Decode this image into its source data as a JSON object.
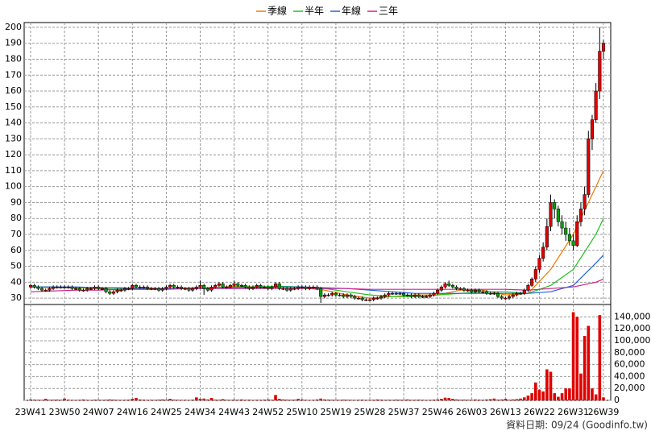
{
  "chart_data": {
    "type": "candlestick",
    "legend": "top",
    "footer": "資料日期: 09/24 (Goodinfo.tw)",
    "up_color": "#e00000",
    "down_color": "#00a000",
    "categories": [
      "23W41",
      null,
      null,
      null,
      null,
      null,
      null,
      null,
      null,
      "23W50",
      null,
      null,
      null,
      null,
      null,
      null,
      null,
      null,
      "24W07",
      null,
      null,
      null,
      null,
      null,
      null,
      null,
      null,
      "24W16",
      null,
      null,
      null,
      null,
      null,
      null,
      null,
      null,
      "24W25",
      null,
      null,
      null,
      null,
      null,
      null,
      null,
      null,
      "24W34",
      null,
      null,
      null,
      null,
      null,
      null,
      null,
      null,
      "24W43",
      null,
      null,
      null,
      null,
      null,
      null,
      null,
      null,
      "24W52",
      null,
      null,
      null,
      null,
      null,
      null,
      null,
      null,
      "25W10",
      null,
      null,
      null,
      null,
      null,
      null,
      null,
      null,
      "25W19",
      null,
      null,
      null,
      null,
      null,
      null,
      null,
      null,
      "25W28",
      null,
      null,
      null,
      null,
      null,
      null,
      null,
      null,
      "25W37",
      null,
      null,
      null,
      null,
      null,
      null,
      null,
      null,
      "25W46",
      null,
      null,
      null,
      null,
      null,
      null,
      null,
      null,
      "26W03",
      null,
      null,
      null,
      null,
      null,
      null,
      null,
      null,
      "26W13",
      null,
      null,
      null,
      null,
      null,
      null,
      null,
      null,
      "26W22",
      null,
      null,
      null,
      null,
      null,
      null,
      null,
      null,
      "26W31",
      null,
      null,
      null,
      null,
      null,
      null,
      null,
      "26W39"
    ],
    "open": [
      37,
      38,
      37,
      36,
      35,
      35,
      36,
      37,
      37,
      37,
      37,
      37,
      36,
      36,
      35,
      35,
      36,
      36,
      37,
      36,
      36,
      34,
      33,
      34,
      35,
      35,
      36,
      36,
      38,
      37,
      37,
      37,
      36,
      36,
      36,
      35,
      36,
      37,
      38,
      37,
      37,
      36,
      36,
      35,
      36,
      37,
      38,
      36,
      35,
      37,
      38,
      39,
      37,
      37,
      38,
      39,
      38,
      38,
      37,
      36,
      37,
      38,
      37,
      37,
      36,
      37,
      39,
      36,
      36,
      35,
      36,
      36,
      37,
      37,
      36,
      37,
      37,
      36,
      31,
      32,
      32,
      33,
      32,
      32,
      31,
      32,
      31,
      30,
      30,
      29,
      29,
      29,
      30,
      30,
      31,
      32,
      33,
      33,
      33,
      33,
      32,
      32,
      31,
      32,
      31,
      31,
      31,
      32,
      33,
      35,
      37,
      39,
      38,
      37,
      36,
      36,
      35,
      35,
      34,
      35,
      34,
      34,
      33,
      33,
      33,
      31,
      30,
      30,
      31,
      32,
      33,
      33,
      35,
      38,
      42,
      48,
      55,
      62,
      75,
      90,
      86,
      78,
      74,
      70,
      66,
      63,
      78,
      86,
      95,
      130,
      142,
      160,
      185
    ],
    "high": [
      39,
      39,
      38,
      37,
      36,
      37,
      38,
      38,
      38,
      38,
      38,
      38,
      37,
      37,
      36,
      37,
      37,
      38,
      38,
      37,
      37,
      35,
      35,
      36,
      36,
      37,
      37,
      39,
      39,
      38,
      38,
      38,
      37,
      37,
      37,
      37,
      38,
      39,
      39,
      38,
      38,
      37,
      37,
      37,
      38,
      41,
      39,
      37,
      38,
      39,
      40,
      40,
      38,
      39,
      41,
      40,
      39,
      39,
      38,
      38,
      39,
      39,
      38,
      38,
      38,
      40,
      40,
      37,
      37,
      37,
      37,
      38,
      38,
      38,
      38,
      38,
      38,
      37,
      33,
      33,
      34,
      34,
      33,
      33,
      33,
      33,
      32,
      31,
      31,
      30,
      30,
      31,
      31,
      32,
      33,
      34,
      34,
      34,
      34,
      34,
      33,
      33,
      33,
      33,
      32,
      32,
      33,
      34,
      36,
      38,
      40,
      41,
      39,
      38,
      37,
      37,
      36,
      36,
      36,
      36,
      35,
      35,
      34,
      34,
      34,
      32,
      31,
      32,
      33,
      34,
      34,
      36,
      39,
      43,
      50,
      57,
      65,
      80,
      95,
      92,
      88,
      82,
      78,
      74,
      70,
      82,
      90,
      100,
      135,
      145,
      165,
      200,
      192
    ],
    "low": [
      36,
      36,
      35,
      34,
      34,
      34,
      35,
      36,
      36,
      36,
      36,
      35,
      35,
      34,
      34,
      34,
      35,
      35,
      35,
      35,
      33,
      32,
      32,
      33,
      34,
      34,
      35,
      35,
      36,
      36,
      36,
      35,
      35,
      35,
      34,
      34,
      35,
      36,
      36,
      36,
      35,
      35,
      34,
      34,
      35,
      36,
      32,
      34,
      34,
      36,
      37,
      36,
      36,
      36,
      37,
      37,
      37,
      36,
      35,
      35,
      36,
      36,
      36,
      35,
      35,
      36,
      35,
      35,
      34,
      34,
      35,
      35,
      36,
      35,
      35,
      36,
      35,
      27,
      30,
      31,
      31,
      31,
      31,
      30,
      30,
      30,
      29,
      29,
      28,
      28,
      28,
      28,
      29,
      29,
      30,
      31,
      32,
      32,
      32,
      31,
      31,
      30,
      30,
      30,
      30,
      30,
      30,
      31,
      32,
      34,
      36,
      37,
      36,
      35,
      35,
      34,
      34,
      33,
      33,
      33,
      33,
      32,
      32,
      32,
      30,
      29,
      29,
      29,
      30,
      31,
      32,
      32,
      34,
      37,
      40,
      46,
      53,
      60,
      72,
      80,
      75,
      70,
      66,
      63,
      60,
      62,
      75,
      82,
      93,
      123,
      140,
      155,
      180
    ],
    "close": [
      38,
      37,
      36,
      35,
      35,
      36,
      37,
      37,
      37,
      37,
      37,
      36,
      36,
      35,
      35,
      36,
      36,
      37,
      36,
      36,
      34,
      33,
      34,
      35,
      35,
      36,
      36,
      38,
      37,
      37,
      37,
      36,
      36,
      36,
      35,
      36,
      37,
      38,
      37,
      37,
      36,
      36,
      35,
      36,
      37,
      38,
      36,
      35,
      37,
      38,
      39,
      37,
      37,
      38,
      39,
      38,
      38,
      37,
      36,
      37,
      38,
      37,
      37,
      36,
      37,
      39,
      36,
      36,
      35,
      36,
      36,
      37,
      37,
      36,
      37,
      37,
      36,
      31,
      32,
      32,
      33,
      32,
      32,
      31,
      32,
      31,
      30,
      30,
      29,
      29,
      29,
      30,
      30,
      31,
      32,
      33,
      33,
      33,
      33,
      32,
      32,
      31,
      32,
      31,
      31,
      31,
      32,
      33,
      35,
      37,
      39,
      38,
      37,
      36,
      36,
      35,
      35,
      34,
      35,
      34,
      34,
      33,
      33,
      33,
      31,
      30,
      30,
      31,
      32,
      33,
      33,
      35,
      38,
      42,
      48,
      55,
      62,
      75,
      90,
      86,
      78,
      74,
      70,
      66,
      63,
      78,
      86,
      95,
      130,
      142,
      160,
      185,
      190
    ],
    "ylim": [
      26,
      203
    ],
    "yticks": [
      30,
      40,
      50,
      60,
      70,
      80,
      90,
      100,
      110,
      120,
      130,
      140,
      150,
      160,
      170,
      180,
      190,
      200
    ],
    "lines": [
      {
        "name": "季線",
        "color": "#f07800",
        "x": [
          0,
          6,
          12,
          18,
          24,
          30,
          36,
          42,
          48,
          54,
          60,
          66,
          72,
          78,
          84,
          90,
          96,
          102,
          108,
          114,
          120,
          126,
          132,
          138,
          144,
          150,
          152
        ],
        "values": [
          37,
          36.5,
          36.5,
          36,
          35,
          36.5,
          36,
          36.5,
          36.5,
          37.5,
          37,
          37,
          36.5,
          35,
          32,
          30,
          31,
          32,
          32,
          35,
          35,
          32,
          33,
          48,
          70,
          100,
          110
        ]
      },
      {
        "name": "半年",
        "color": "#20c020",
        "x": [
          0,
          6,
          12,
          18,
          24,
          30,
          36,
          42,
          48,
          54,
          60,
          66,
          72,
          78,
          84,
          90,
          96,
          102,
          108,
          114,
          120,
          126,
          132,
          138,
          144,
          150,
          152
        ],
        "values": [
          37,
          37,
          36.5,
          36.5,
          36,
          35.5,
          36,
          36,
          36.5,
          37,
          37,
          37.5,
          37,
          36,
          34,
          32,
          31,
          31,
          32,
          33,
          34,
          34,
          33,
          38,
          48,
          70,
          80
        ]
      },
      {
        "name": "年線",
        "color": "#2060e0",
        "x": [
          0,
          6,
          12,
          18,
          24,
          30,
          36,
          42,
          48,
          54,
          60,
          66,
          72,
          78,
          84,
          90,
          96,
          102,
          108,
          114,
          120,
          126,
          132,
          138,
          144,
          150,
          152
        ],
        "values": [
          37,
          37,
          37,
          36.5,
          36.5,
          36,
          36,
          36,
          36,
          36.5,
          36.5,
          37,
          37,
          36.5,
          36,
          35,
          34,
          33,
          33,
          33,
          33,
          33,
          33,
          34,
          38,
          52,
          57
        ]
      },
      {
        "name": "三年",
        "color": "#d02090",
        "x": [
          0,
          6,
          12,
          18,
          24,
          30,
          36,
          42,
          48,
          54,
          60,
          66,
          72,
          78,
          84,
          90,
          96,
          102,
          108,
          114,
          120,
          126,
          132,
          138,
          144,
          150,
          152
        ],
        "values": [
          34,
          34.5,
          35,
          35,
          35.5,
          35.5,
          35.5,
          36,
          36,
          36,
          36,
          36,
          36,
          36,
          36,
          35.5,
          35.5,
          35.5,
          35.5,
          35.5,
          35.5,
          35.5,
          35,
          36,
          37,
          40,
          42
        ]
      }
    ],
    "volume": {
      "color": "#e00000",
      "ylim": [
        0,
        150000
      ],
      "yticks": [
        0,
        {
          "value": 20000,
          "label": "20,000"
        },
        {
          "value": 40000,
          "label": "40,000"
        },
        {
          "value": 60000,
          "label": "60,000"
        },
        {
          "value": 80000,
          "label": "80,000"
        },
        {
          "value": 100000,
          "label": "100,000"
        },
        {
          "value": 120000,
          "label": "120,000"
        },
        {
          "value": 140000,
          "label": "140,000"
        }
      ],
      "values": [
        1500,
        1200,
        1000,
        800,
        2500,
        900,
        1100,
        1300,
        1000,
        3000,
        1200,
        900,
        800,
        1000,
        1500,
        900,
        700,
        1200,
        1000,
        800,
        1000,
        1500,
        1200,
        900,
        800,
        1000,
        1200,
        2500,
        4000,
        1500,
        1200,
        900,
        1000,
        800,
        1200,
        1500,
        1000,
        2500,
        1200,
        1000,
        900,
        1000,
        800,
        1200,
        5000,
        2500,
        3000,
        1500,
        4000,
        1200,
        1000,
        2000,
        900,
        800,
        1200,
        1000,
        1500,
        1000,
        1200,
        800,
        1000,
        900,
        1200,
        1500,
        1000,
        9000,
        2500,
        1500,
        1200,
        1000,
        1200,
        2500,
        1500,
        1000,
        800,
        900,
        1500,
        3000,
        1500,
        1200,
        1000,
        900,
        800,
        1200,
        1000,
        900,
        800,
        1000,
        1200,
        900,
        800,
        1000,
        1500,
        1200,
        900,
        1000,
        800,
        1200,
        1000,
        900,
        1500,
        900,
        1000,
        1200,
        1000,
        800,
        900,
        1200,
        1500,
        2500,
        4500,
        4000,
        2500,
        1500,
        1000,
        1200,
        1000,
        900,
        1500,
        1200,
        1000,
        1500,
        2000,
        3000,
        1200,
        1500,
        2500,
        1000,
        1500,
        2000,
        3000,
        5000,
        8000,
        12000,
        30000,
        18000,
        15000,
        52000,
        48000,
        12000,
        6000,
        12000,
        20000,
        20000,
        148000,
        140000,
        45000,
        108000,
        125000,
        20000,
        10000,
        143000,
        5000
      ]
    }
  }
}
